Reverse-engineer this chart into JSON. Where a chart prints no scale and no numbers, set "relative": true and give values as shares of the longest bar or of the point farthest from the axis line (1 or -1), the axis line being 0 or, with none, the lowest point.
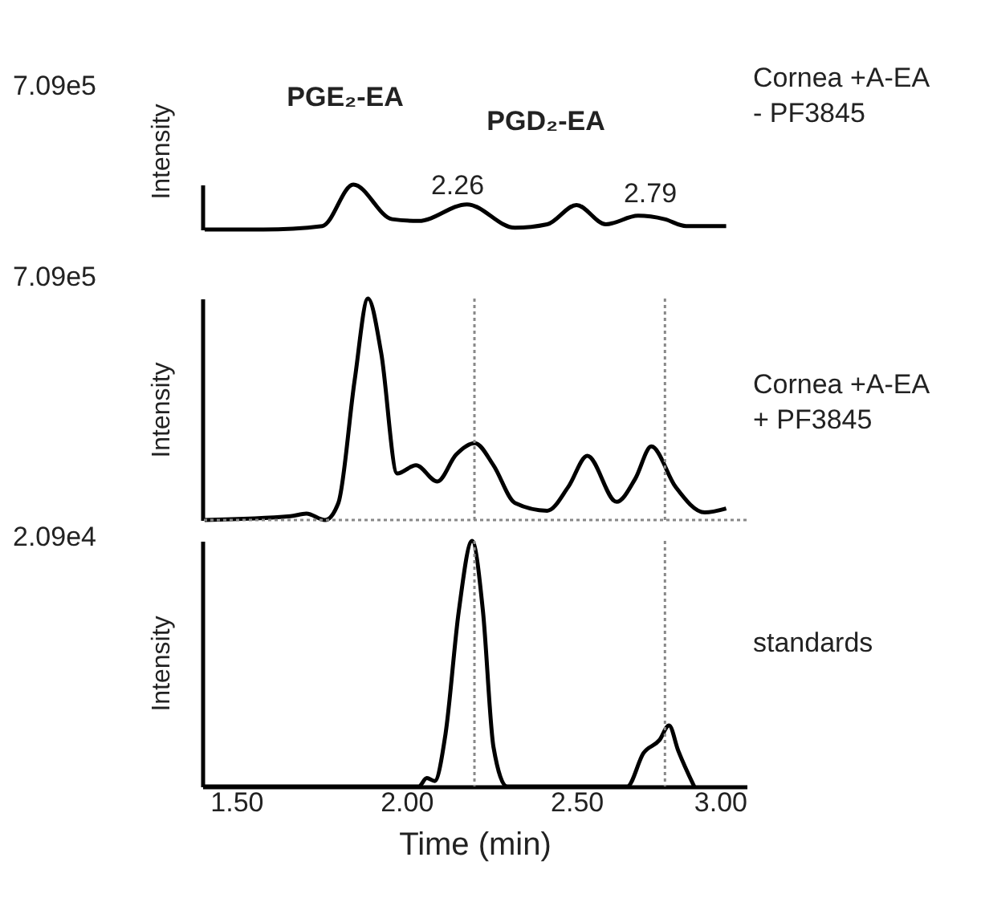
{
  "chart_data": [
    {
      "type": "line",
      "relative": true,
      "ylabel": "Intensity",
      "tick_labels": false,
      "xlim": [
        1.4,
        3.0
      ],
      "color": "#000000",
      "x": [
        1.407,
        1.58,
        1.753,
        1.844,
        1.958,
        2.036,
        2.178,
        2.319,
        2.414,
        2.5,
        2.586,
        2.681,
        2.759,
        2.822,
        2.94
      ],
      "values": [
        0,
        0,
        0.077,
        1,
        0.23,
        0.19,
        0.56,
        0.038,
        0.115,
        0.545,
        0.115,
        0.306,
        0.23,
        0.077,
        0.077
      ],
      "annotations": [
        "7.09e5",
        "Cornea +A-EA\n- PF3845",
        "PGE₂-EA",
        "PGD₂-EA",
        "2.26",
        "2.79"
      ]
    },
    {
      "type": "line",
      "relative": true,
      "ylabel": "Intensity",
      "tick_labels": false,
      "xlim": [
        1.4,
        3.0
      ],
      "color": "#000000",
      "x": [
        1.407,
        1.659,
        1.706,
        1.761,
        1.8,
        1.848,
        1.887,
        1.926,
        1.973,
        2.028,
        2.091,
        2.146,
        2.201,
        2.256,
        2.319,
        2.414,
        2.476,
        2.532,
        2.618,
        2.673,
        2.72,
        2.791,
        2.877,
        2.94
      ],
      "values": [
        0,
        0.017,
        0.029,
        0,
        0.077,
        0.633,
        1,
        0.753,
        0.21,
        0.247,
        0.174,
        0.295,
        0.347,
        0.247,
        0.077,
        0.042,
        0.15,
        0.29,
        0.082,
        0.187,
        0.332,
        0.15,
        0.034,
        0.052
      ],
      "ref_lines": [
        {
          "axis": "x",
          "value": 2.2,
          "line_style": "dotted",
          "color": "#888888"
        },
        {
          "axis": "x",
          "value": 2.76,
          "line_style": "dotted",
          "color": "#888888"
        },
        {
          "axis": "y",
          "value": 0,
          "line_style": "dotted",
          "color": "#888888"
        }
      ],
      "annotations": [
        "7.09e5",
        "Cornea +A-EA\n+ PF3845"
      ]
    },
    {
      "type": "line",
      "relative": true,
      "ylabel": "Intensity",
      "xlabel": "Time (min)",
      "tick_labels": "x",
      "xlim": [
        1.4,
        3.0
      ],
      "xticks": [
        {
          "value": 1.5,
          "label": "1.50"
        },
        {
          "value": 2,
          "label": "2.00"
        },
        {
          "value": 2.5,
          "label": "2.50"
        },
        {
          "value": 3,
          "label": "3.00"
        }
      ],
      "color": "#000000",
      "x": [
        1.407,
        2.036,
        2.06,
        2.083,
        2.115,
        2.154,
        2.193,
        2.225,
        2.256,
        2.296,
        2.398,
        2.649,
        2.697,
        2.744,
        2.772,
        2.799,
        2.846
      ],
      "values": [
        0,
        0,
        0.034,
        0.022,
        0.214,
        0.714,
        1,
        0.714,
        0.16,
        0,
        0,
        0,
        0.136,
        0.189,
        0.248,
        0.146,
        0
      ],
      "ref_lines": [
        {
          "axis": "x",
          "value": 2.2,
          "line_style": "dotted",
          "color": "#888888"
        },
        {
          "axis": "x",
          "value": 2.76,
          "line_style": "dotted",
          "color": "#888888"
        }
      ],
      "annotations": [
        "2.09e4",
        "standards"
      ]
    }
  ]
}
